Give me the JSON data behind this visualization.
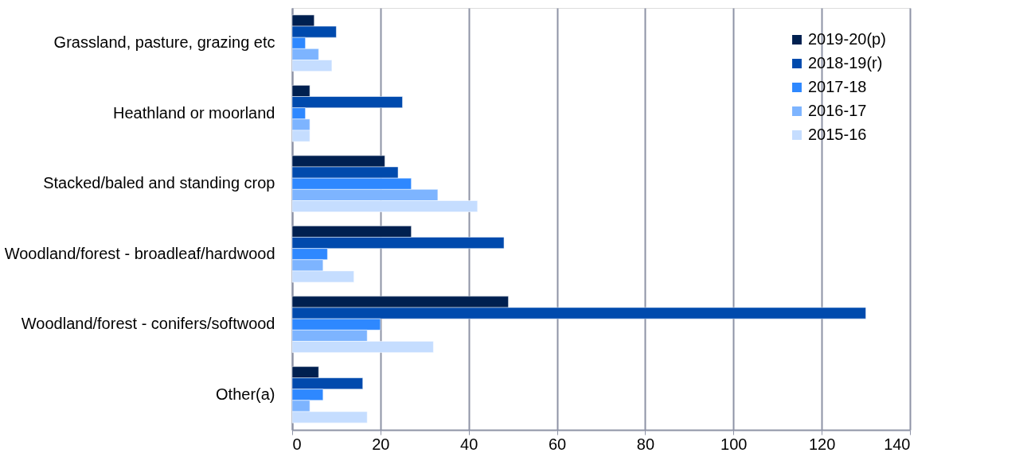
{
  "chart_data": {
    "type": "bar",
    "orientation": "horizontal",
    "categories": [
      "Grassland, pasture, grazing etc",
      "Heathland or moorland",
      "Stacked/baled and standing crop",
      "Woodland/forest - broadleaf/hardwood",
      "Woodland/forest - conifers/softwood",
      "Other(a)"
    ],
    "series": [
      {
        "name": "2019-20(p)",
        "color": "#002050",
        "values": [
          5,
          4,
          21,
          27,
          49,
          6
        ]
      },
      {
        "name": "2018-19(r)",
        "color": "#004aad",
        "values": [
          10,
          25,
          24,
          48,
          130,
          16
        ]
      },
      {
        "name": "2017-18",
        "color": "#2e88ff",
        "values": [
          3,
          3,
          27,
          8,
          20,
          7
        ]
      },
      {
        "name": "2016-17",
        "color": "#7db4ff",
        "values": [
          6,
          4,
          33,
          7,
          17,
          4
        ]
      },
      {
        "name": "2015-16",
        "color": "#c5ddff",
        "values": [
          9,
          4,
          42,
          14,
          32,
          17
        ]
      }
    ],
    "xlim": [
      0,
      140
    ],
    "xticks": [
      0,
      20,
      40,
      60,
      80,
      100,
      120,
      140
    ],
    "grid": "x",
    "legend": "top right"
  }
}
